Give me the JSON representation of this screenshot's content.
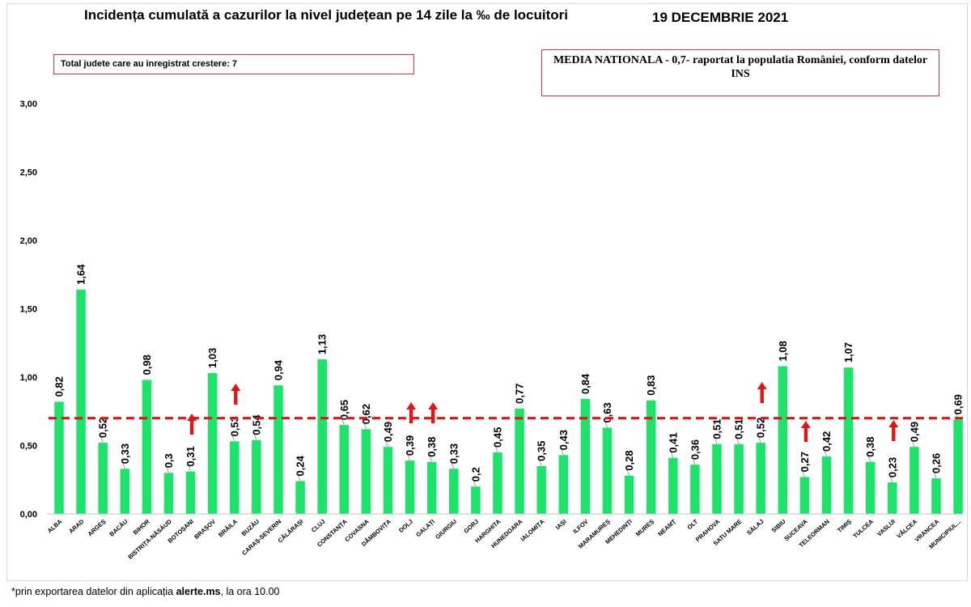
{
  "header": {
    "title": "Incidența cumulată a cazurilor la nivel județean pe 14 zile la ‰ de locuitori",
    "date": "19 DECEMBRIE 2021"
  },
  "boxes": {
    "left": "Total judete care au inregistrat crestere: 7",
    "right": "MEDIA NATIONALA - 0,7-  raportat la populatia României, conform datelor INS"
  },
  "footnote": {
    "prefix": "*prin exportarea  datelor din aplicația ",
    "source": "alerte.ms",
    "suffix": ", la ora 10.00"
  },
  "colors": {
    "bar": "#1ee36a",
    "reference_line": "#e31414",
    "arrow": "#e31414",
    "box_border": "#d23b3b"
  },
  "chart_data": {
    "type": "bar",
    "title": "Incidența cumulată a cazurilor la nivel județean pe 14 zile la ‰ de locuitori",
    "ylim": [
      0,
      3
    ],
    "yticks": [
      "0,00",
      "0,50",
      "1,00",
      "1,50",
      "2,00",
      "2,50",
      "3,00"
    ],
    "ytick_values": [
      0,
      0.5,
      1,
      1.5,
      2,
      2.5,
      3
    ],
    "grid": false,
    "reference_line": {
      "value": 0.7,
      "style": "dashed"
    },
    "categories": [
      "ALBA",
      "ARAD",
      "ARGEȘ",
      "BACĂU",
      "BIHOR",
      "BISTRIȚA-NĂSĂUD",
      "BOTOȘANI",
      "BRAȘOV",
      "BRĂILA",
      "BUZĂU",
      "CARAȘ-SEVERIN",
      "CĂLĂRAȘI",
      "CLUJ",
      "CONSTANȚA",
      "COVASNA",
      "DÂMBOVIȚA",
      "DOLJ",
      "GALAȚI",
      "GIURGIU",
      "GORJ",
      "HARGHITA",
      "HUNEDOARA",
      "IALOMIȚA",
      "IAȘI",
      "ILFOV",
      "MARAMUREȘ",
      "MEHEDINȚI",
      "MUREȘ",
      "NEAMȚ",
      "OLT",
      "PRAHOVA",
      "SATU MARE",
      "SĂLAJ",
      "SIBIU",
      "SUCEAVA",
      "TELEORMAN",
      "TIMIȘ",
      "TULCEA",
      "VASLUI",
      "VÂLCEA",
      "VRANCEA",
      "MUNICIPIUL BUCUREȘTI"
    ],
    "category_labels": [
      "ALBA",
      "ARAD",
      "ARGEȘ",
      "BACĂU",
      "BIHOR",
      "BISTRIȚA-NĂSĂUD",
      "BOTOȘANI",
      "BRAȘOV",
      "BRĂILA",
      "BUZĂU",
      "CARAȘ-SEVERIN",
      "CĂLĂRAȘI",
      "CLUJ",
      "CONSTANȚA",
      "COVASNA",
      "DÂMBOVIȚA",
      "DOLJ",
      "GALAȚI",
      "GIURGIU",
      "GORJ",
      "HARGHITA",
      "HUNEDOARA",
      "IALOMIȚA",
      "IAȘI",
      "ILFOV",
      "MARAMUREȘ",
      "MEHEDINȚI",
      "MUREȘ",
      "NEAMȚ",
      "OLT",
      "PRAHOVA",
      "SATU MARE",
      "SĂLAJ",
      "SIBIU",
      "SUCEAVA",
      "TELEORMAN",
      "TIMIȘ",
      "TULCEA",
      "VASLUI",
      "VÂLCEA",
      "VRANCEA",
      "MUNICIPIUL..."
    ],
    "values": [
      0.82,
      1.64,
      0.52,
      0.33,
      0.98,
      0.3,
      0.31,
      1.03,
      0.53,
      0.54,
      0.94,
      0.24,
      1.13,
      0.65,
      0.62,
      0.49,
      0.39,
      0.38,
      0.33,
      0.2,
      0.45,
      0.77,
      0.35,
      0.43,
      0.84,
      0.63,
      0.28,
      0.83,
      0.41,
      0.36,
      0.51,
      0.51,
      0.52,
      1.08,
      0.27,
      0.42,
      1.07,
      0.38,
      0.23,
      0.49,
      0.26,
      0.69
    ],
    "value_labels": [
      "0,82",
      "1,64",
      "0,52",
      "0,33",
      "0,98",
      "0,3",
      "0,31",
      "1,03",
      "0,53",
      "0,54",
      "0,94",
      "0,24",
      "1,13",
      "0,65",
      "0,62",
      "0,49",
      "0,39",
      "0,38",
      "0,33",
      "0,2",
      "0,45",
      "0,77",
      "0,35",
      "0,43",
      "0,84",
      "0,63",
      "0,28",
      "0,83",
      "0,41",
      "0,36",
      "0,51",
      "0,51",
      "0,52",
      "1,08",
      "0,27",
      "0,42",
      "1,07",
      "0,38",
      "0,23",
      "0,49",
      "0,26",
      "0,69"
    ],
    "increase_markers": [
      "BOTOȘANI",
      "BRĂILA",
      "DOLJ",
      "GALAȚI",
      "SĂLAJ",
      "SUCEAVA",
      "VASLUI"
    ]
  }
}
